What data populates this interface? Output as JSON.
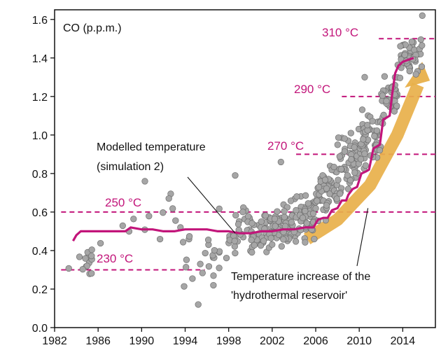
{
  "chart_data": {
    "type": "scatter",
    "title": "",
    "xlabel": "",
    "ylabel": "CO (p.p.m.)",
    "xlim": [
      1982,
      2017
    ],
    "ylim": [
      0,
      1.65
    ],
    "x_ticks": [
      1982,
      1986,
      1990,
      1994,
      1998,
      2002,
      2006,
      2010,
      2014
    ],
    "y_ticks": [
      "0.0",
      "0.2",
      "0.4",
      "0.6",
      "0.8",
      "1.0",
      "1.2",
      "1.4",
      "1.6"
    ],
    "grid": false,
    "colors": {
      "points": "#a6a6a6",
      "point_edge": "#6f6f6f",
      "model_line": "#c2157a",
      "reference_lines": "#c2157a",
      "arrow": "#e8b04a"
    },
    "reference_lines": [
      {
        "label": "230 °C",
        "y": 0.3,
        "x_start": 1982.6,
        "x_end": 1995.8
      },
      {
        "label": "250 °C",
        "y": 0.6,
        "x_start": 1982.6,
        "x_end": 2017
      },
      {
        "label": "270 °C",
        "y": 0.9,
        "x_start": 2004.2,
        "x_end": 2017
      },
      {
        "label": "290 °C",
        "y": 1.2,
        "x_start": 2008.4,
        "x_end": 2017
      },
      {
        "label": "310 °C",
        "y": 1.5,
        "x_start": 2011.8,
        "x_end": 2017
      }
    ],
    "model_series": {
      "name": "Modelled temperature (simulation 2)",
      "x": [
        1983.7,
        1984.0,
        1984.4,
        1985.0,
        1986.0,
        1987.0,
        1988.0,
        1988.5,
        1989.0,
        1990.0,
        1991.0,
        1992.0,
        1993.0,
        1994.0,
        1995.0,
        1996.0,
        1997.0,
        1998.0,
        1999.0,
        2000.0,
        2001.0,
        2002.0,
        2003.0,
        2004.0,
        2005.0,
        2005.8,
        2006.2,
        2006.7,
        2007.1,
        2007.5,
        2008.0,
        2008.4,
        2008.8,
        2009.0,
        2009.4,
        2009.8,
        2010.2,
        2010.6,
        2010.9,
        2011.3,
        2011.6,
        2011.9,
        2012.2,
        2012.5,
        2012.8,
        2013.0,
        2013.3,
        2013.6,
        2014.0,
        2014.5,
        2015.0
      ],
      "values": [
        0.45,
        0.48,
        0.5,
        0.5,
        0.5,
        0.5,
        0.5,
        0.5,
        0.52,
        0.51,
        0.51,
        0.5,
        0.5,
        0.51,
        0.51,
        0.51,
        0.5,
        0.5,
        0.49,
        0.49,
        0.5,
        0.5,
        0.51,
        0.51,
        0.52,
        0.52,
        0.56,
        0.57,
        0.57,
        0.61,
        0.62,
        0.66,
        0.66,
        0.69,
        0.72,
        0.73,
        0.8,
        0.81,
        0.82,
        0.93,
        0.94,
        0.95,
        1.08,
        1.09,
        1.1,
        1.2,
        1.32,
        1.36,
        1.38,
        1.39,
        1.4
      ]
    },
    "observed_series": {
      "name": "CO",
      "seed": 7,
      "segments": [
        {
          "x0": 1983.3,
          "x1": 1985.6,
          "n": 14,
          "mean": 0.34,
          "spread": 0.16
        },
        {
          "x0": 1985.6,
          "x1": 1993.6,
          "n": 12,
          "mean": 0.55,
          "spread": 0.16
        },
        {
          "x0": 1993.6,
          "x1": 1997.6,
          "n": 22,
          "mean": 0.36,
          "spread": 0.26
        },
        {
          "x0": 1997.6,
          "x1": 2000.0,
          "n": 30,
          "mean": 0.5,
          "spread": 0.14
        },
        {
          "x0": 2000.0,
          "x1": 2003.0,
          "n": 80,
          "mean": 0.5,
          "spread": 0.13
        },
        {
          "x0": 2003.0,
          "x1": 2006.0,
          "n": 80,
          "mean": 0.56,
          "spread": 0.15
        },
        {
          "x0": 2006.0,
          "x1": 2008.0,
          "n": 55,
          "mean": 0.7,
          "spread": 0.18
        },
        {
          "x0": 2008.0,
          "x1": 2010.0,
          "n": 55,
          "mean": 0.85,
          "spread": 0.2
        },
        {
          "x0": 2010.0,
          "x1": 2012.0,
          "n": 55,
          "mean": 0.98,
          "spread": 0.2
        },
        {
          "x0": 2012.0,
          "x1": 2013.5,
          "n": 45,
          "mean": 1.18,
          "spread": 0.17
        },
        {
          "x0": 2013.5,
          "x1": 2015.8,
          "n": 55,
          "mean": 1.4,
          "spread": 0.13
        }
      ],
      "extra_points": [
        [
          2015.8,
          1.62
        ],
        [
          1995.2,
          0.12
        ],
        [
          1996.6,
          0.22
        ],
        [
          1990.3,
          0.76
        ],
        [
          1992.5,
          0.67
        ],
        [
          1998.6,
          0.79
        ],
        [
          2002.8,
          0.86
        ],
        [
          2010.5,
          1.3
        ]
      ]
    },
    "arrow": {
      "x": [
        2005.2,
        2008.0,
        2011.0,
        2013.5,
        2015.4
      ],
      "values": [
        0.46,
        0.56,
        0.74,
        1.0,
        1.26
      ],
      "head_value": 1.38
    },
    "annotations": {
      "model_label_line1": "Modelled temperature",
      "model_label_line2": "(simulation 2)",
      "increase_label_line1": "Temperature increase of the",
      "increase_label_line2": "'hydrothermal reservoir'"
    },
    "model_pointer": {
      "x": 1998.6,
      "value": 0.49
    },
    "increase_pointer": {
      "x": 2010.8,
      "value": 0.62
    }
  }
}
